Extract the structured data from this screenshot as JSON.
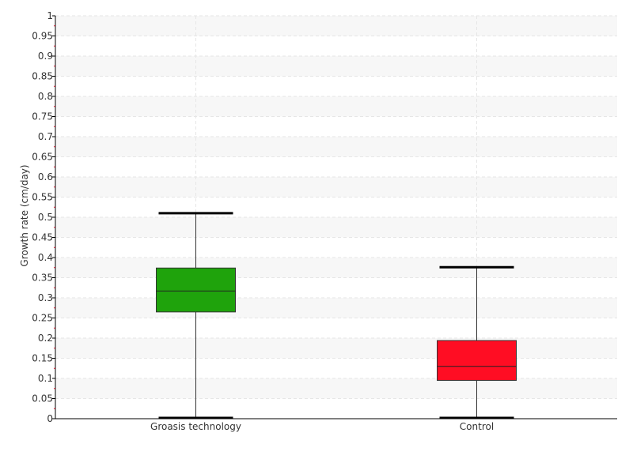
{
  "chart_data": {
    "type": "boxplot",
    "ylabel": "Growth rate (cm/day)",
    "xlabel": "",
    "ylim": [
      0,
      1
    ],
    "y_ticks": [
      "0",
      "0.05",
      "0.1",
      "0.15",
      "0.2",
      "0.25",
      "0.3",
      "0.35",
      "0.4",
      "0.45",
      "0.5",
      "0.55",
      "0.6",
      "0.65",
      "0.7",
      "0.75",
      "0.8",
      "0.85",
      "0.9",
      "0.95",
      "1"
    ],
    "categories": [
      "Groasis technology",
      "Control"
    ],
    "boxes": [
      {
        "category": "Groasis technology",
        "min": 0.0,
        "q1": 0.265,
        "median": 0.317,
        "q3": 0.374,
        "max": 0.51,
        "color": "#1fa30c"
      },
      {
        "category": "Control",
        "min": 0.0,
        "q1": 0.095,
        "median": 0.13,
        "q3": 0.194,
        "max": 0.376,
        "color": "#ff0d23"
      }
    ],
    "grid": true,
    "band_colors": [
      "#f7f7f7",
      "#ffffff"
    ],
    "grid_color": "#e6e6e6"
  }
}
